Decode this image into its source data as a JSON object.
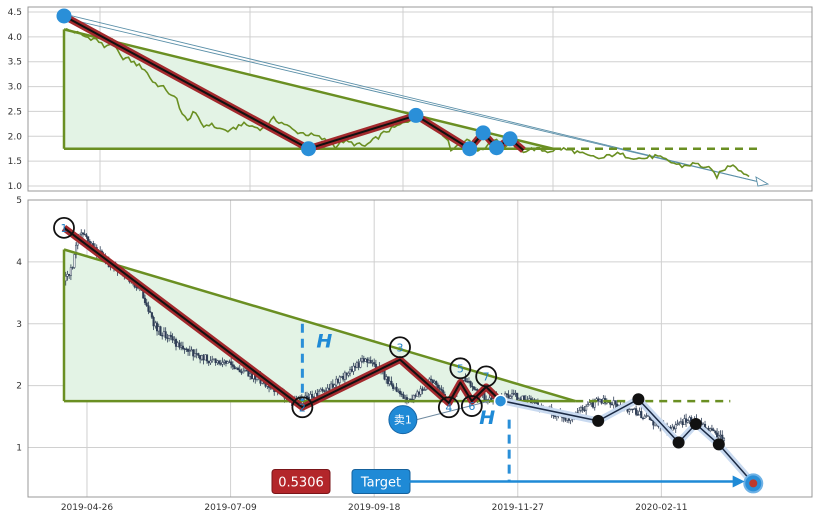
{
  "colors": {
    "grid": "#d0d0d0",
    "axis": "#666666",
    "triangle_fill": "#e3f3e5",
    "triangle_line": "#6a8f22",
    "top_price": "#6a8f22",
    "zigzag_outer": "#a3292d",
    "zigzag_inner": "#111111",
    "marker_blue": "#2a8fd8",
    "candle": "#2e3d55",
    "projection_fill": "#c9daf0",
    "badge_red": "#b3262a",
    "badge_blue": "#1f8ad6"
  },
  "chart_data": [
    {
      "id": "overview",
      "type": "line",
      "ylim": [
        0.9,
        4.6
      ],
      "yticks": [
        "1.0",
        "1.5",
        "2.0",
        "2.5",
        "3.0",
        "3.5",
        "4.0",
        "4.5"
      ],
      "price_anchors": [
        [
          0,
          4.15
        ],
        [
          4,
          4.1
        ],
        [
          8,
          4.0
        ],
        [
          12,
          3.95
        ],
        [
          15,
          3.8
        ],
        [
          18,
          3.9
        ],
        [
          21,
          3.6
        ],
        [
          24,
          3.55
        ],
        [
          27,
          3.45
        ],
        [
          30,
          3.35
        ],
        [
          33,
          3.1
        ],
        [
          36,
          3.0
        ],
        [
          38,
          2.95
        ],
        [
          40,
          2.8
        ],
        [
          42,
          2.75
        ],
        [
          44,
          2.45
        ],
        [
          46,
          2.3
        ],
        [
          48,
          2.5
        ],
        [
          50,
          2.35
        ],
        [
          52,
          2.2
        ],
        [
          54,
          2.25
        ],
        [
          58,
          2.15
        ],
        [
          62,
          2.1
        ],
        [
          66,
          2.25
        ],
        [
          70,
          2.2
        ],
        [
          74,
          2.15
        ],
        [
          78,
          2.35
        ],
        [
          82,
          2.25
        ],
        [
          86,
          2.1
        ],
        [
          90,
          2.05
        ],
        [
          94,
          2.0
        ],
        [
          98,
          1.9
        ],
        [
          101,
          1.8
        ],
        [
          104,
          1.9
        ],
        [
          108,
          1.85
        ],
        [
          112,
          1.8
        ],
        [
          116,
          1.95
        ],
        [
          120,
          2.1
        ],
        [
          124,
          2.2
        ],
        [
          128,
          2.3
        ],
        [
          131,
          2.45
        ],
        [
          134,
          2.35
        ],
        [
          138,
          2.2
        ],
        [
          142,
          2.0
        ],
        [
          144,
          1.75
        ],
        [
          146,
          1.8
        ],
        [
          148,
          1.9
        ],
        [
          150,
          1.95
        ],
        [
          152,
          1.8
        ],
        [
          155,
          1.7
        ],
        [
          158,
          1.85
        ],
        [
          161,
          1.95
        ],
        [
          164,
          1.8
        ],
        [
          167,
          1.85
        ],
        [
          170,
          1.7
        ],
        [
          175,
          1.75
        ],
        [
          180,
          1.7
        ],
        [
          185,
          1.75
        ],
        [
          190,
          1.7
        ],
        [
          195,
          1.6
        ],
        [
          200,
          1.55
        ],
        [
          205,
          1.65
        ],
        [
          210,
          1.6
        ],
        [
          215,
          1.55
        ],
        [
          220,
          1.6
        ],
        [
          225,
          1.5
        ],
        [
          230,
          1.4
        ],
        [
          235,
          1.45
        ],
        [
          240,
          1.35
        ],
        [
          243,
          1.2
        ],
        [
          246,
          1.35
        ],
        [
          249,
          1.45
        ],
        [
          252,
          1.3
        ],
        [
          255,
          1.2
        ]
      ],
      "zigzag": [
        [
          0,
          4.42
        ],
        [
          91,
          1.75
        ],
        [
          131,
          2.42
        ],
        [
          151,
          1.75
        ],
        [
          156,
          2.07
        ],
        [
          161,
          1.77
        ],
        [
          166,
          1.95
        ],
        [
          171,
          1.72
        ]
      ],
      "zigzag_markers": [
        [
          0,
          4.42
        ],
        [
          91,
          1.75
        ],
        [
          131,
          2.42
        ],
        [
          151,
          1.75
        ],
        [
          156,
          2.07
        ],
        [
          161,
          1.77
        ],
        [
          166,
          1.95
        ]
      ],
      "triangle": {
        "apex": [
          0,
          4.15
        ],
        "base_left": [
          0,
          1.75
        ],
        "base_right": [
          182,
          1.75
        ],
        "dashed_end": [
          260,
          1.75
        ]
      },
      "projection": {
        "start": [
          0,
          4.42
        ],
        "end": [
          262,
          1.04
        ]
      },
      "xmax": 265
    },
    {
      "id": "detail",
      "type": "candlestick",
      "ylim": [
        0.2,
        5.0
      ],
      "yticks": [
        "1",
        "2",
        "3",
        "4",
        "5"
      ],
      "xticks": [
        {
          "t": 8,
          "label": "2019-04-26"
        },
        {
          "t": 58,
          "label": "2019-07-09"
        },
        {
          "t": 108,
          "label": "2019-09-18"
        },
        {
          "t": 158,
          "label": "2019-11-27"
        },
        {
          "t": 208,
          "label": "2020-02-11"
        }
      ],
      "price_anchors": [
        [
          0,
          3.75
        ],
        [
          3,
          3.9
        ],
        [
          5,
          4.45
        ],
        [
          8,
          4.35
        ],
        [
          12,
          4.15
        ],
        [
          16,
          3.95
        ],
        [
          20,
          3.85
        ],
        [
          24,
          3.65
        ],
        [
          27,
          3.5
        ],
        [
          29,
          3.3
        ],
        [
          31,
          3.0
        ],
        [
          34,
          2.85
        ],
        [
          37,
          2.75
        ],
        [
          40,
          2.65
        ],
        [
          43,
          2.55
        ],
        [
          46,
          2.5
        ],
        [
          49,
          2.45
        ],
        [
          52,
          2.4
        ],
        [
          56,
          2.35
        ],
        [
          60,
          2.3
        ],
        [
          64,
          2.2
        ],
        [
          68,
          2.1
        ],
        [
          72,
          2.0
        ],
        [
          76,
          1.85
        ],
        [
          80,
          1.75
        ],
        [
          84,
          1.8
        ],
        [
          88,
          1.85
        ],
        [
          92,
          1.95
        ],
        [
          96,
          2.1
        ],
        [
          100,
          2.25
        ],
        [
          104,
          2.4
        ],
        [
          107,
          2.35
        ],
        [
          110,
          2.25
        ],
        [
          114,
          2.0
        ],
        [
          118,
          1.8
        ],
        [
          121,
          1.75
        ],
        [
          124,
          1.9
        ],
        [
          128,
          2.1
        ],
        [
          131,
          1.95
        ],
        [
          134,
          1.75
        ],
        [
          137,
          2.0
        ],
        [
          140,
          2.1
        ],
        [
          144,
          1.85
        ],
        [
          148,
          1.8
        ],
        [
          152,
          1.82
        ],
        [
          156,
          1.85
        ],
        [
          160,
          1.78
        ],
        [
          164,
          1.7
        ],
        [
          168,
          1.62
        ],
        [
          172,
          1.52
        ],
        [
          176,
          1.45
        ],
        [
          180,
          1.62
        ],
        [
          184,
          1.7
        ],
        [
          188,
          1.78
        ],
        [
          192,
          1.72
        ],
        [
          196,
          1.62
        ],
        [
          200,
          1.55
        ],
        [
          204,
          1.45
        ],
        [
          208,
          1.35
        ],
        [
          212,
          1.3
        ],
        [
          216,
          1.45
        ],
        [
          220,
          1.4
        ],
        [
          224,
          1.3
        ],
        [
          228,
          1.2
        ],
        [
          230,
          1.1
        ]
      ],
      "candle_range": [
        0,
        230
      ],
      "triangle": {
        "apex": [
          0,
          4.2
        ],
        "base_left": [
          0,
          1.75
        ],
        "base_right": [
          178,
          1.75
        ],
        "dashed_end": [
          232,
          1.75
        ]
      },
      "zigzag": [
        [
          0,
          4.55
        ],
        [
          83,
          1.65
        ],
        [
          117,
          2.42
        ],
        [
          134,
          1.72
        ],
        [
          138,
          2.05
        ],
        [
          142,
          1.75
        ],
        [
          147,
          1.98
        ],
        [
          152,
          1.75
        ]
      ],
      "wave_labels": [
        {
          "t": 0,
          "v": 4.55,
          "text": "1"
        },
        {
          "t": 83,
          "v": 1.65,
          "text": "2"
        },
        {
          "t": 117,
          "v": 2.62,
          "text": "3"
        },
        {
          "t": 134,
          "v": 1.65,
          "text": "4"
        },
        {
          "t": 138,
          "v": 2.28,
          "text": "5"
        },
        {
          "t": 142,
          "v": 1.67,
          "text": "6"
        },
        {
          "t": 147,
          "v": 2.15,
          "text": "7"
        }
      ],
      "projection_path": [
        [
          153,
          1.75
        ],
        [
          186,
          1.43
        ],
        [
          200,
          1.78
        ],
        [
          214,
          1.08
        ],
        [
          220,
          1.38
        ],
        [
          228,
          1.05
        ],
        [
          240,
          0.42
        ]
      ],
      "projection_dots": [
        [
          186,
          1.43
        ],
        [
          200,
          1.78
        ],
        [
          214,
          1.08
        ],
        [
          220,
          1.38
        ],
        [
          228,
          1.05
        ]
      ],
      "target_point": [
        240,
        0.42
      ],
      "height_marker": {
        "t": 83,
        "v_top": 3.0,
        "v_bottom": 1.75,
        "label": "H"
      },
      "height_marker2": {
        "t": 155,
        "v_top": 1.45,
        "v_bottom": 0.45,
        "label": "H"
      },
      "sell_marker": {
        "t": 118,
        "v": 1.45,
        "label": "卖1"
      },
      "sell_line_end": [
        148,
        1.75
      ],
      "target_arrow": {
        "from_t": 120,
        "to_t": 237,
        "v": 0.45
      },
      "xmax": 250
    }
  ],
  "badges": {
    "ratio": "0.5306",
    "target": "Target"
  }
}
